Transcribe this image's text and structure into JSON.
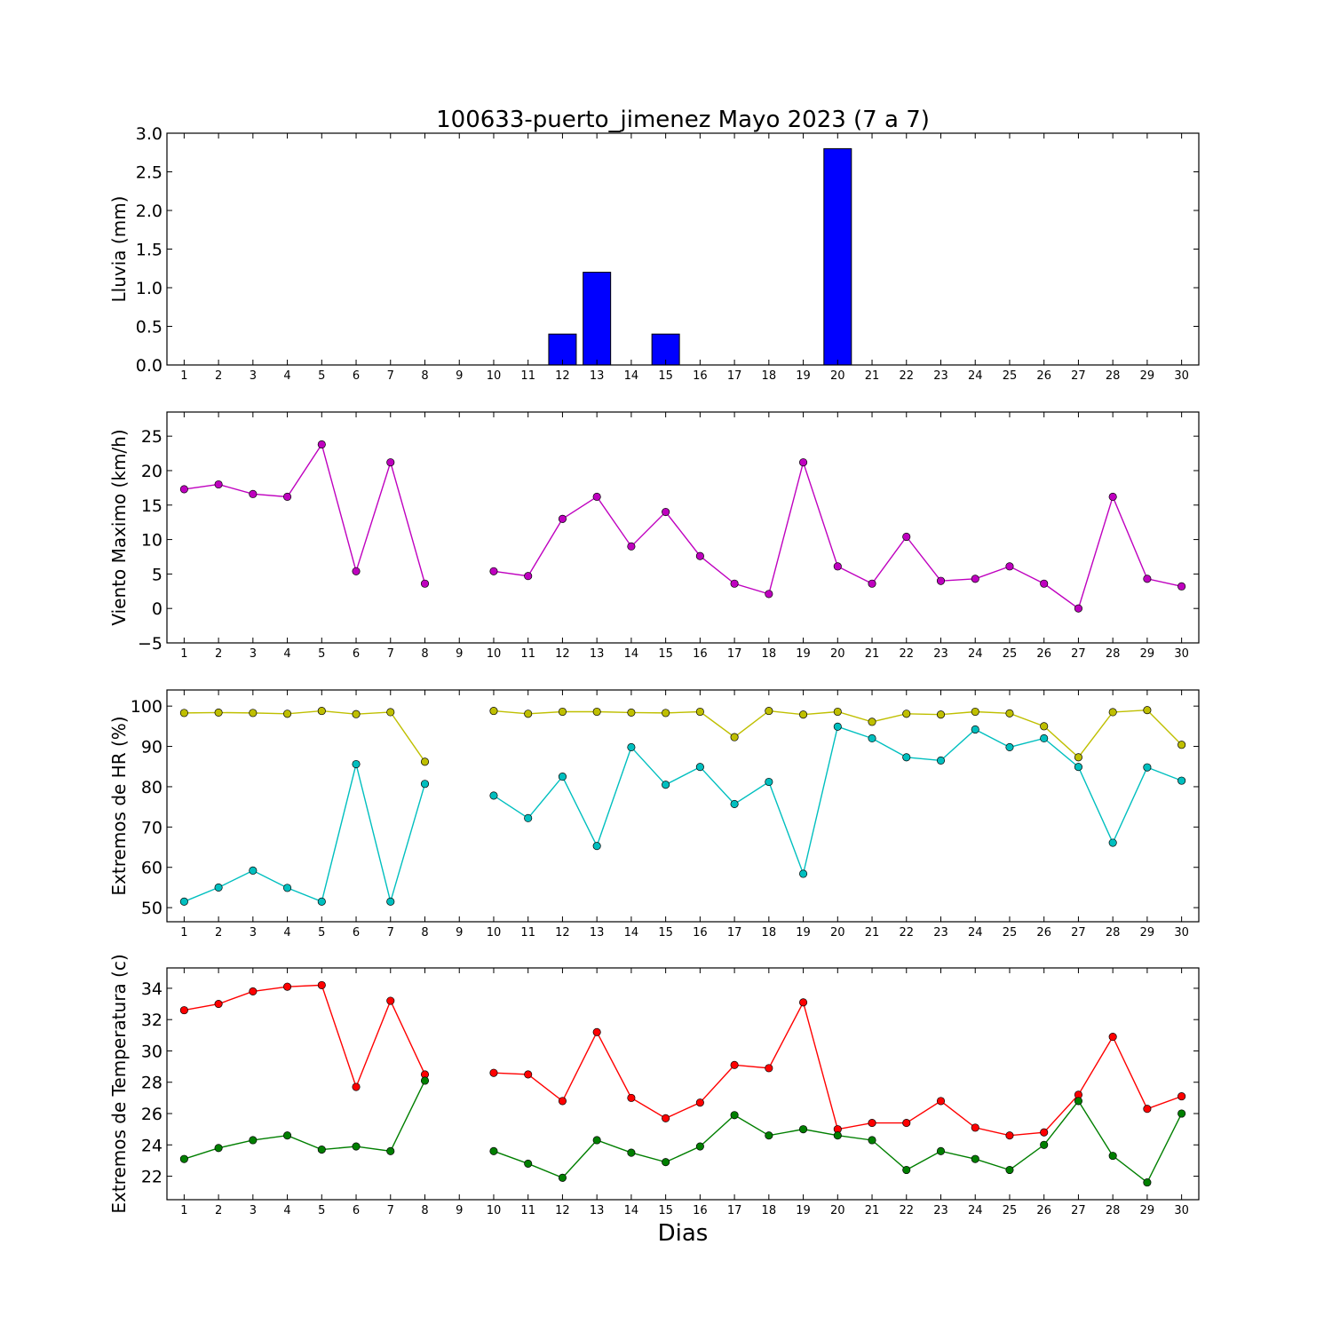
{
  "chart_data": [
    {
      "id": "rain",
      "type": "bar",
      "title": "100633-puerto_jimenez Mayo 2023  (7 a 7)",
      "xlabel": "",
      "ylabel": "Lluvia (mm)",
      "x": [
        1,
        2,
        3,
        4,
        5,
        6,
        7,
        8,
        9,
        10,
        11,
        12,
        13,
        14,
        15,
        16,
        17,
        18,
        19,
        20,
        21,
        22,
        23,
        24,
        25,
        26,
        27,
        28,
        29,
        30
      ],
      "xlim": [
        0.5,
        30.5
      ],
      "ylim": [
        0,
        3.0
      ],
      "yticks": [
        0.0,
        0.5,
        1.0,
        1.5,
        2.0,
        2.5,
        3.0
      ],
      "ytick_labels": [
        "0.0",
        "0.5",
        "1.0",
        "1.5",
        "2.0",
        "2.5",
        "3.0"
      ],
      "series": [
        {
          "color": "#0000ff",
          "values": [
            0,
            0,
            0,
            0,
            0,
            0,
            0,
            0,
            null,
            0,
            0,
            0.4,
            1.2,
            0,
            0.4,
            0,
            0,
            0,
            0,
            2.8,
            0,
            0,
            0,
            0,
            0,
            0,
            0,
            0,
            0,
            0
          ]
        }
      ]
    },
    {
      "id": "wind",
      "type": "line",
      "title": "",
      "xlabel": "",
      "ylabel": "Viento Maximo (km/h)",
      "x": [
        1,
        2,
        3,
        4,
        5,
        6,
        7,
        8,
        9,
        10,
        11,
        12,
        13,
        14,
        15,
        16,
        17,
        18,
        19,
        20,
        21,
        22,
        23,
        24,
        25,
        26,
        27,
        28,
        29,
        30
      ],
      "xlim": [
        0.5,
        30.5
      ],
      "ylim": [
        -5,
        28.5
      ],
      "yticks": [
        -5,
        0,
        5,
        10,
        15,
        20,
        25
      ],
      "ytick_labels": [
        "−5",
        "0",
        "5",
        "10",
        "15",
        "20",
        "25"
      ],
      "series": [
        {
          "color": "#bf00bf",
          "values": [
            17.3,
            18.0,
            16.6,
            16.2,
            23.8,
            5.4,
            21.2,
            3.6,
            null,
            5.4,
            4.7,
            13.0,
            16.2,
            9.0,
            14.0,
            7.6,
            3.6,
            2.1,
            21.2,
            6.1,
            3.6,
            10.4,
            4.0,
            4.3,
            6.1,
            3.6,
            0.0,
            16.2,
            4.3,
            3.2
          ]
        }
      ]
    },
    {
      "id": "humidity",
      "type": "line",
      "title": "",
      "xlabel": "",
      "ylabel": "Extremos de HR (%)",
      "x": [
        1,
        2,
        3,
        4,
        5,
        6,
        7,
        8,
        9,
        10,
        11,
        12,
        13,
        14,
        15,
        16,
        17,
        18,
        19,
        20,
        21,
        22,
        23,
        24,
        25,
        26,
        27,
        28,
        29,
        30
      ],
      "xlim": [
        0.5,
        30.5
      ],
      "ylim": [
        46.5,
        104
      ],
      "yticks": [
        50,
        60,
        70,
        80,
        90,
        100
      ],
      "ytick_labels": [
        "50",
        "60",
        "70",
        "80",
        "90",
        "100"
      ],
      "series": [
        {
          "color": "#bfbf00",
          "values": [
            98.3,
            98.4,
            98.3,
            98.1,
            98.8,
            98.0,
            98.5,
            86.2,
            null,
            98.8,
            98.1,
            98.6,
            98.6,
            98.4,
            98.3,
            98.6,
            92.3,
            98.8,
            97.9,
            98.6,
            96.1,
            98.1,
            97.9,
            98.6,
            98.2,
            95.0,
            87.3,
            98.5,
            99.0,
            90.4
          ]
        },
        {
          "color": "#00bfbf",
          "values": [
            51.5,
            55.0,
            59.2,
            54.9,
            51.5,
            85.6,
            51.5,
            80.7,
            null,
            77.8,
            72.2,
            82.5,
            65.3,
            89.8,
            80.5,
            84.9,
            75.7,
            81.2,
            58.4,
            94.9,
            92.0,
            87.3,
            86.5,
            94.2,
            89.8,
            92.0,
            84.9,
            66.1,
            84.8,
            81.5
          ]
        }
      ]
    },
    {
      "id": "temperature",
      "type": "line",
      "title": "",
      "xlabel": "Dias",
      "ylabel": "Extremos de Temperatura (c)",
      "x": [
        1,
        2,
        3,
        4,
        5,
        6,
        7,
        8,
        9,
        10,
        11,
        12,
        13,
        14,
        15,
        16,
        17,
        18,
        19,
        20,
        21,
        22,
        23,
        24,
        25,
        26,
        27,
        28,
        29,
        30
      ],
      "xlim": [
        0.5,
        30.5
      ],
      "ylim": [
        20.5,
        35.3
      ],
      "yticks": [
        22,
        24,
        26,
        28,
        30,
        32,
        34
      ],
      "ytick_labels": [
        "22",
        "24",
        "26",
        "28",
        "30",
        "32",
        "34"
      ],
      "series": [
        {
          "color": "#ff0000",
          "values": [
            32.6,
            33.0,
            33.8,
            34.1,
            34.2,
            27.7,
            33.2,
            28.5,
            null,
            28.6,
            28.5,
            26.8,
            31.2,
            27.0,
            25.7,
            26.7,
            29.1,
            28.9,
            33.1,
            25.0,
            25.4,
            25.4,
            26.8,
            25.1,
            24.6,
            24.8,
            27.2,
            30.9,
            26.3,
            27.1
          ]
        },
        {
          "color": "#007f00",
          "values": [
            23.1,
            23.8,
            24.3,
            24.6,
            23.7,
            23.9,
            23.6,
            28.1,
            null,
            23.6,
            22.8,
            21.9,
            24.3,
            23.5,
            22.9,
            23.9,
            25.9,
            24.6,
            25.0,
            24.6,
            24.3,
            22.4,
            23.6,
            23.1,
            22.4,
            24.0,
            26.8,
            23.3,
            21.6,
            26.0
          ]
        }
      ]
    }
  ]
}
